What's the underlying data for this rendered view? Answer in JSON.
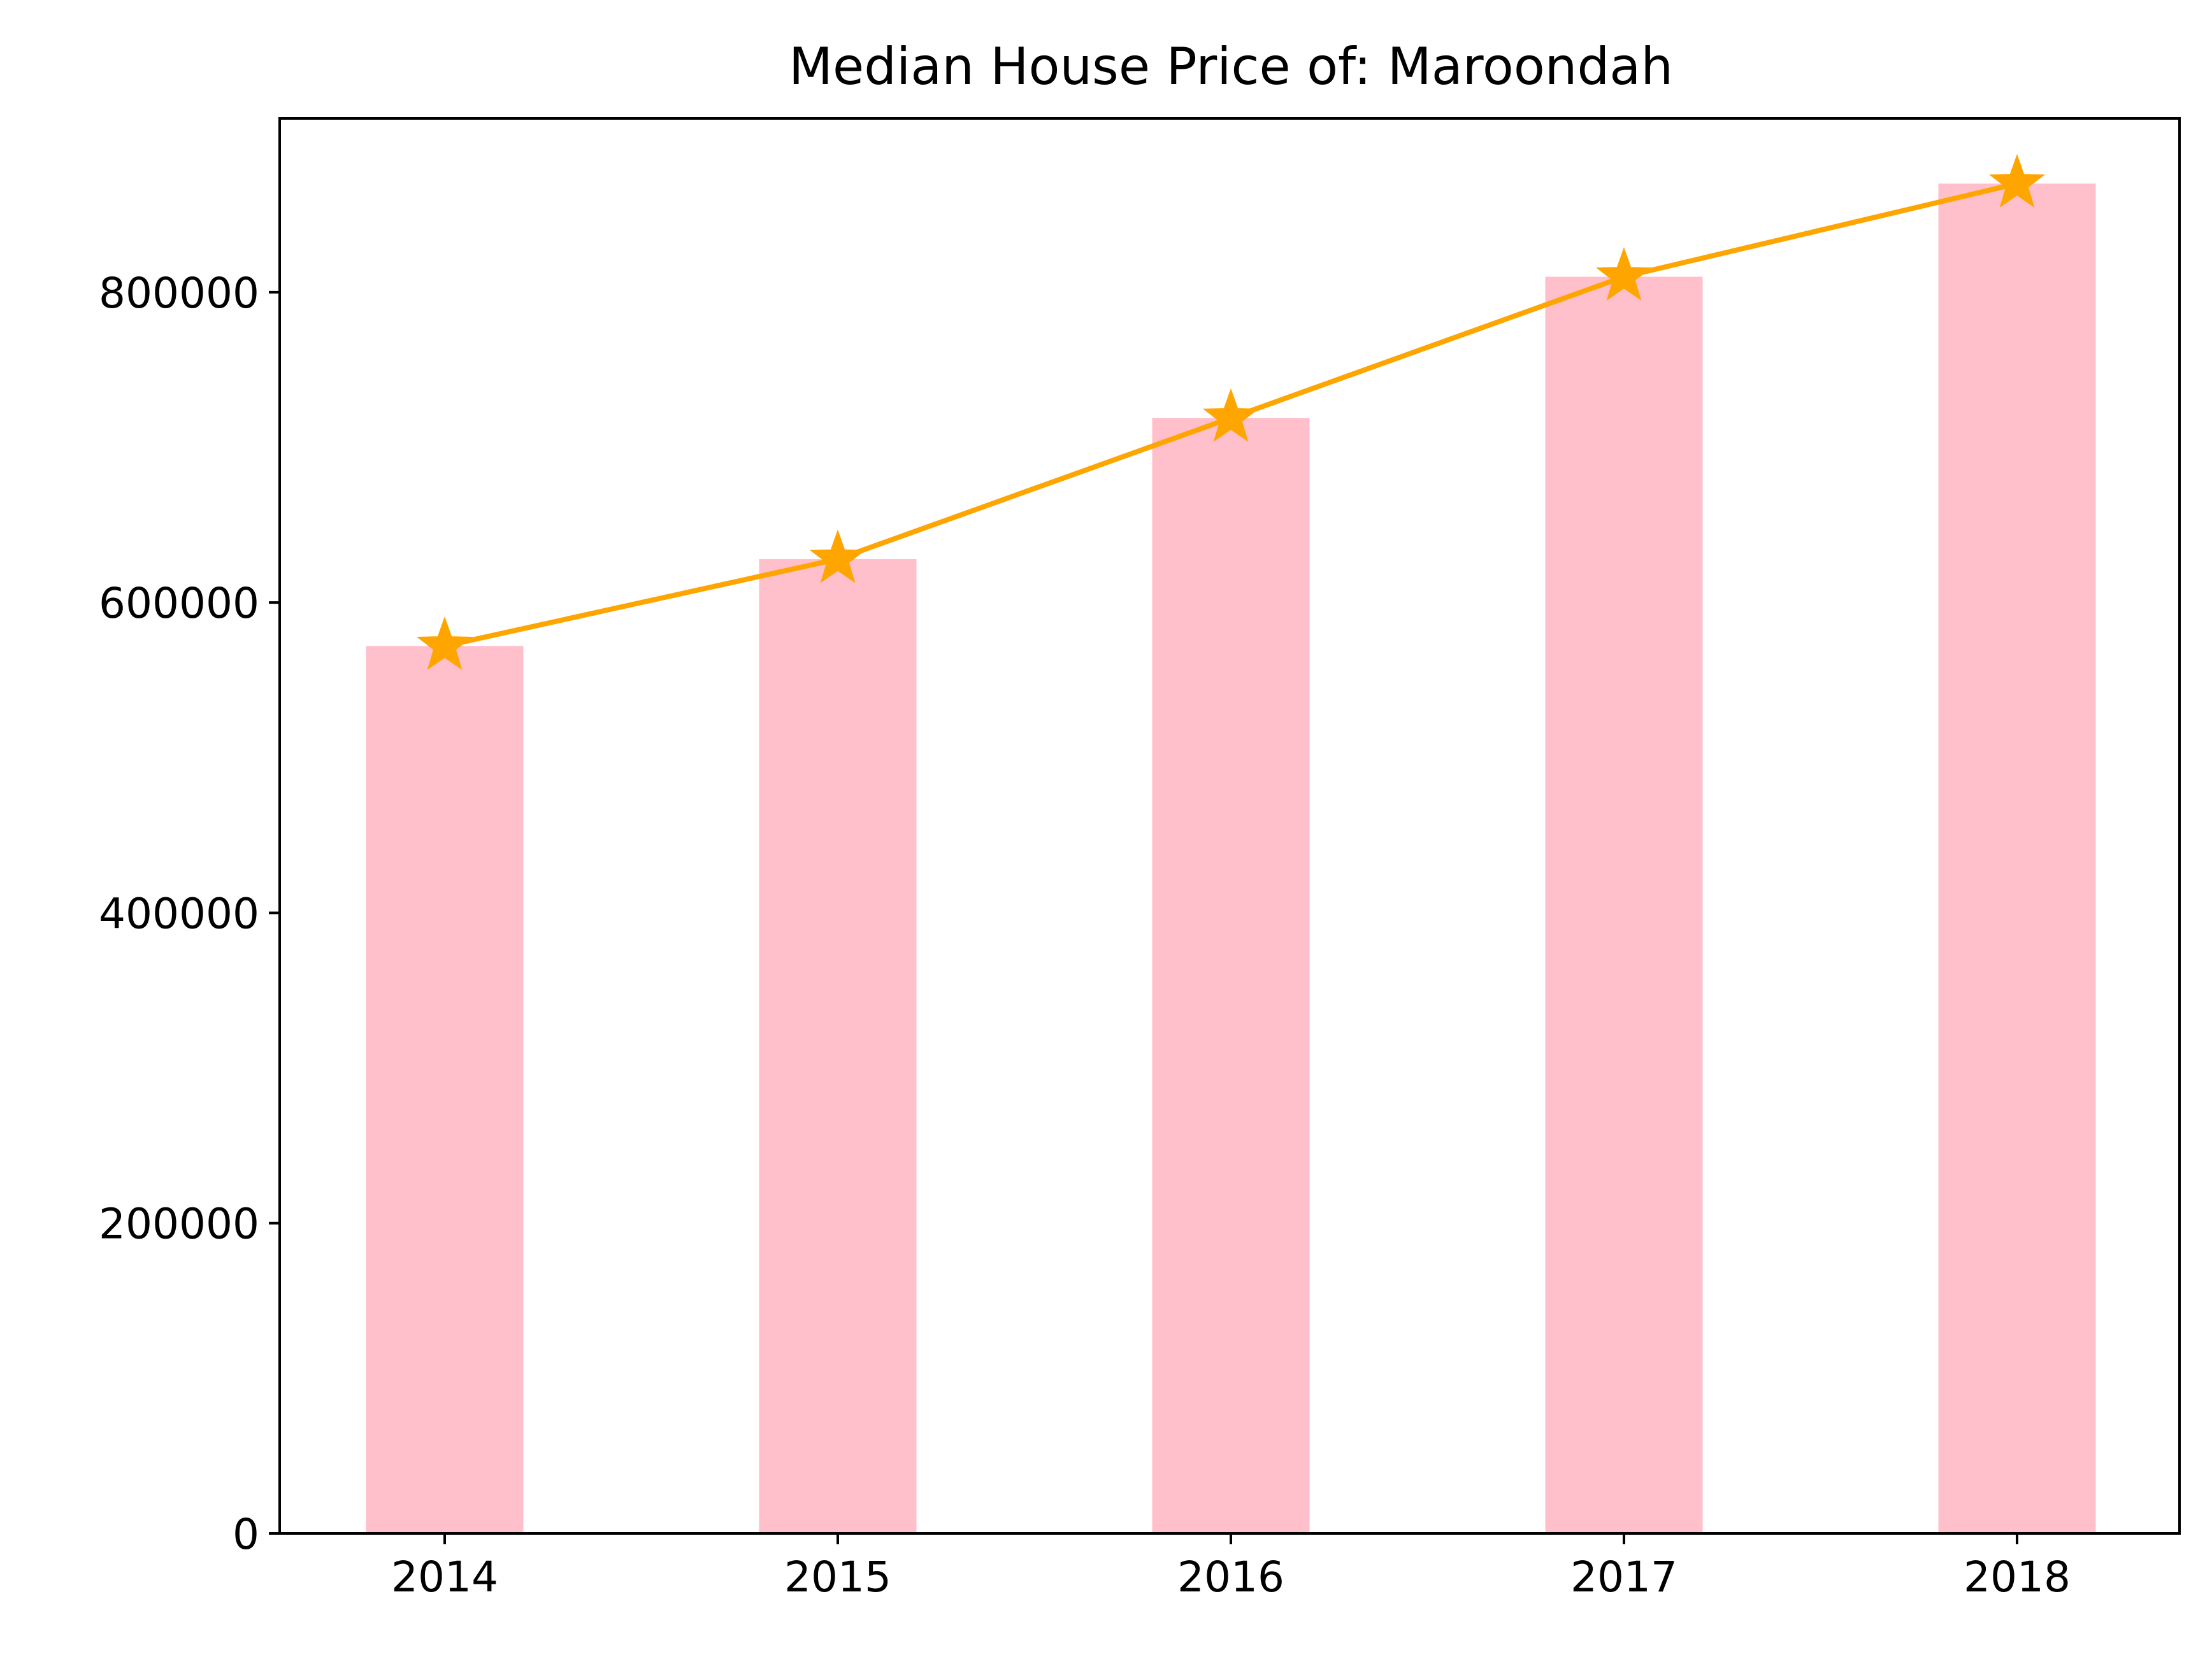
{
  "chart_data": {
    "type": "bar",
    "title": "Median House Price of: Maroondah",
    "xlabel": "",
    "ylabel": "",
    "categories": [
      "2014",
      "2015",
      "2016",
      "2017",
      "2018"
    ],
    "values": [
      572000,
      628000,
      719000,
      810000,
      870000
    ],
    "overlay_line": {
      "values": [
        572000,
        628000,
        719000,
        810000,
        870000
      ],
      "marker": "star"
    },
    "yticks": [
      "0",
      "200000",
      "400000",
      "600000",
      "800000"
    ],
    "ylim": [
      0,
      912000
    ],
    "grid": false,
    "legend": "none",
    "colors": {
      "bar": "#ffc0cb",
      "line": "#ffa500",
      "axis": "#000000"
    }
  }
}
